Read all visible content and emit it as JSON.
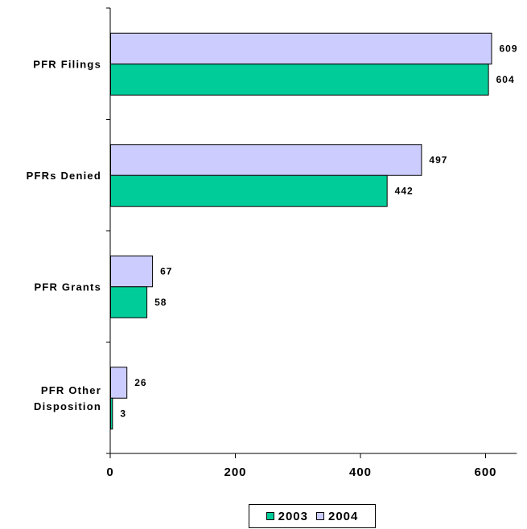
{
  "chart_data": {
    "type": "bar",
    "orientation": "horizontal",
    "categories": [
      "PFR Filings",
      "PFRs Denied",
      "PFR Grants",
      "PFR Other Disposition"
    ],
    "category_label_lines": [
      [
        "PFR Filings"
      ],
      [
        "PFRs Denied"
      ],
      [
        "PFR Grants"
      ],
      [
        "PFR Other",
        "Disposition"
      ]
    ],
    "series": [
      {
        "name": "2003",
        "values": [
          604,
          442,
          58,
          3
        ],
        "color": "#00cc99"
      },
      {
        "name": "2004",
        "values": [
          609,
          497,
          67,
          26
        ],
        "color": "#ccccff"
      }
    ],
    "xlim": [
      0,
      650
    ],
    "xticks": [
      0,
      200,
      400,
      600
    ],
    "title": "",
    "xlabel": "",
    "ylabel": "",
    "grid": false,
    "legend_position": "bottom"
  },
  "legend": {
    "items": [
      {
        "label": "2003",
        "color": "#00cc99"
      },
      {
        "label": "2004",
        "color": "#ccccff"
      }
    ]
  }
}
